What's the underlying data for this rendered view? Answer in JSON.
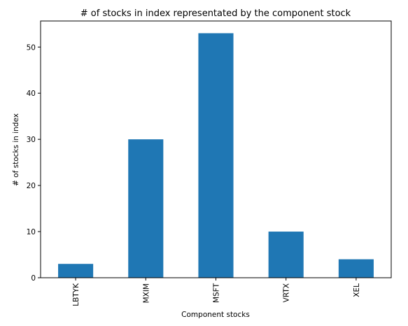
{
  "chart_data": {
    "type": "bar",
    "title": "# of stocks in index representated by the component stock",
    "xlabel": "Component stocks",
    "ylabel": "# of stocks in index",
    "categories": [
      "LBTYK",
      "MXIM",
      "MSFT",
      "VRTX",
      "XEL"
    ],
    "values": [
      3,
      30,
      53,
      10,
      4
    ],
    "ylim": [
      0,
      55.65
    ],
    "yticks": [
      0,
      10,
      20,
      30,
      40,
      50
    ],
    "grid": false,
    "bar_color": "#1f77b4"
  }
}
